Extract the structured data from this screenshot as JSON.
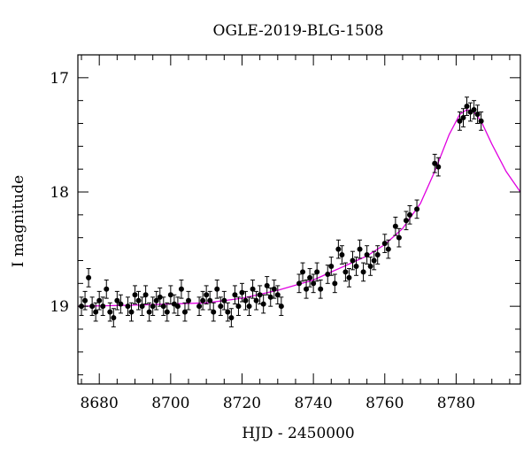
{
  "chart_data": {
    "type": "scatter",
    "title": "OGLE-2019-BLG-1508",
    "xlabel": "HJD - 2450000",
    "ylabel": "I magnitude",
    "xlim": [
      8674,
      8798
    ],
    "ylim": [
      19.68,
      16.8
    ],
    "y_inverted": true,
    "grid": false,
    "x_major_ticks": [
      8680,
      8700,
      8720,
      8740,
      8760,
      8780
    ],
    "x_minor_step": 5,
    "y_major_ticks": [
      17,
      18,
      19
    ],
    "y_minor_step": 0.2,
    "x_tick_labels": [
      "8680",
      "8700",
      "8720",
      "8740",
      "8760",
      "8780"
    ],
    "y_tick_labels": [
      "17",
      "18",
      "19"
    ],
    "colors": {
      "points": "#000000",
      "model": "#e000e0",
      "axes": "#000000"
    },
    "series": [
      {
        "type": "scatter_with_errorbars",
        "x": [
          8675,
          8676,
          8677,
          8678,
          8679,
          8680,
          8681,
          8682,
          8683,
          8684,
          8685,
          8686,
          8688,
          8689,
          8690,
          8691,
          8692,
          8693,
          8694,
          8695,
          8696,
          8697,
          8698,
          8699,
          8700,
          8701,
          8702,
          8703,
          8704,
          8705,
          8708,
          8709,
          8710,
          8711,
          8712,
          8713,
          8714,
          8715,
          8716,
          8717,
          8718,
          8719,
          8720,
          8721,
          8722,
          8723,
          8724,
          8725,
          8726,
          8727,
          8728,
          8729,
          8730,
          8731,
          8736,
          8737,
          8738,
          8739,
          8740,
          8741,
          8742,
          8744,
          8745,
          8746,
          8747,
          8748,
          8749,
          8750,
          8751,
          8752,
          8753,
          8754,
          8755,
          8756,
          8757,
          8758,
          8760,
          8761,
          8763,
          8764,
          8766,
          8767,
          8769,
          8774,
          8775,
          8781,
          8782,
          8783,
          8784,
          8785,
          8786,
          8787
        ],
        "y": [
          19.0,
          18.95,
          18.75,
          19.0,
          19.05,
          18.95,
          19.0,
          18.85,
          19.05,
          19.1,
          18.95,
          18.98,
          19.0,
          19.05,
          18.9,
          18.95,
          19.0,
          18.9,
          19.05,
          19.0,
          18.95,
          18.92,
          19.0,
          19.05,
          18.9,
          18.98,
          19.0,
          18.85,
          19.05,
          18.95,
          19.0,
          18.95,
          18.9,
          18.95,
          19.05,
          18.85,
          19.0,
          18.95,
          19.05,
          19.1,
          18.9,
          19.0,
          18.88,
          18.95,
          19.0,
          18.85,
          18.95,
          18.9,
          18.98,
          18.82,
          18.92,
          18.85,
          18.9,
          19.0,
          18.8,
          18.7,
          18.85,
          18.75,
          18.8,
          18.7,
          18.85,
          18.72,
          18.65,
          18.8,
          18.5,
          18.55,
          18.7,
          18.75,
          18.6,
          18.65,
          18.5,
          18.7,
          18.55,
          18.65,
          18.6,
          18.55,
          18.45,
          18.5,
          18.3,
          18.4,
          18.25,
          18.2,
          18.15,
          17.75,
          17.78,
          17.38,
          17.35,
          17.25,
          17.3,
          17.28,
          17.32,
          17.38
        ],
        "error": 0.08
      },
      {
        "type": "line",
        "name": "",
        "x": [
          8674,
          8690,
          8710,
          8720,
          8730,
          8740,
          8745,
          8750,
          8755,
          8760,
          8765,
          8770,
          8774,
          8778,
          8781,
          8783,
          8785,
          8787,
          8790,
          8794,
          8798
        ],
        "y": [
          19.0,
          18.99,
          18.97,
          18.93,
          18.86,
          18.77,
          18.7,
          18.63,
          18.56,
          18.46,
          18.32,
          18.1,
          17.82,
          17.5,
          17.32,
          17.28,
          17.3,
          17.38,
          17.58,
          17.82,
          18.0
        ]
      }
    ]
  }
}
